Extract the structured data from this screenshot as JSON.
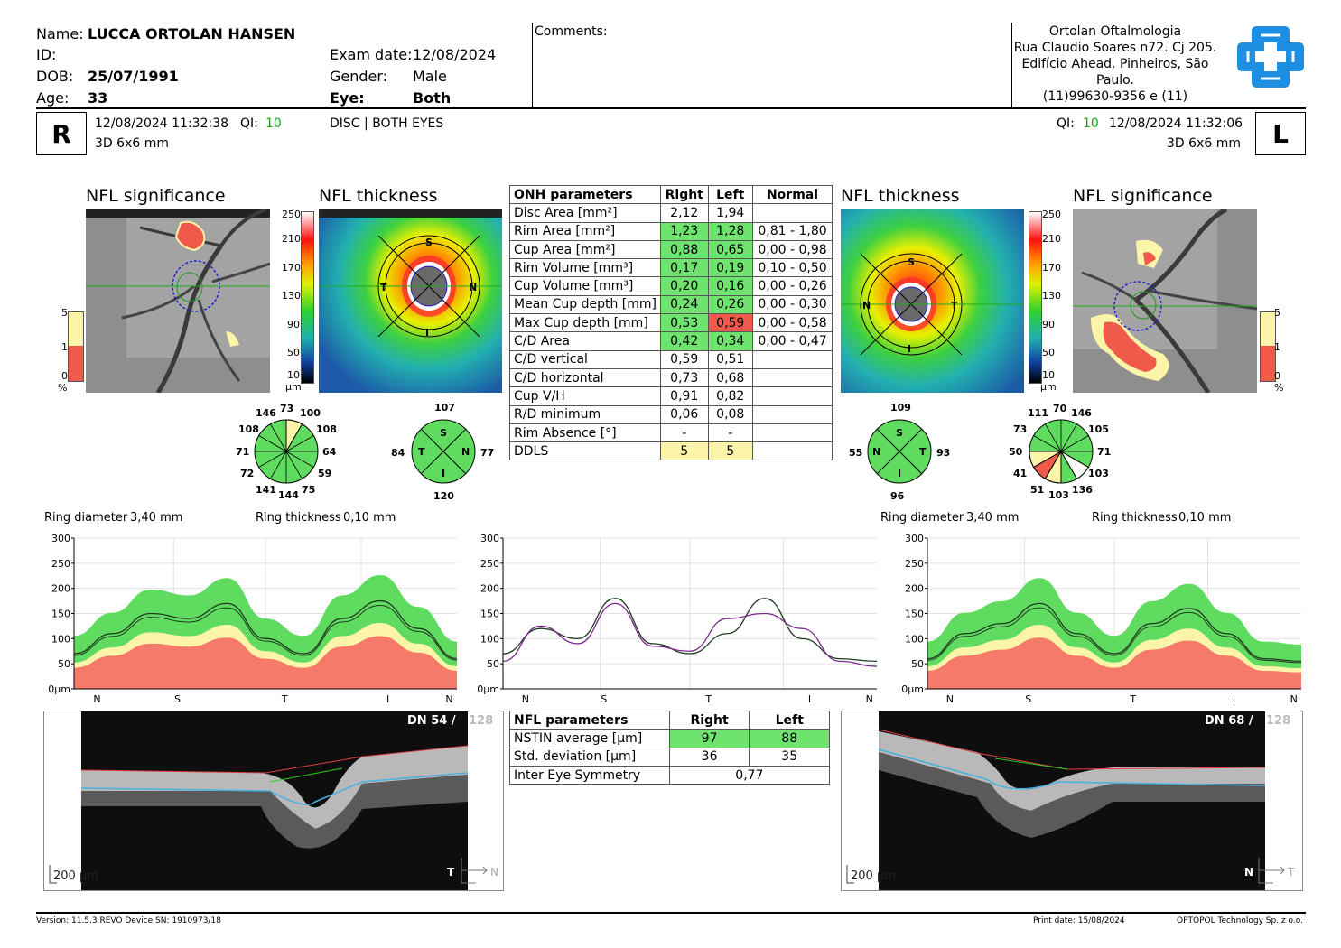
{
  "patient": {
    "name_label": "Name:",
    "name": "LUCCA ORTOLAN HANSEN",
    "id_label": "ID:",
    "dob_label": "DOB:",
    "dob": "25/07/1991",
    "age_label": "Age:",
    "age": "33",
    "exam_date_label": "Exam date:",
    "exam_date": "12/08/2024",
    "gender_label": "Gender:",
    "gender": "Male",
    "eye_label": "Eye:",
    "eye": "Both"
  },
  "comments_label": "Comments:",
  "clinic": {
    "line1": "Ortolan Oftalmologia",
    "line2": "Rua Claudio Soares n72. Cj 205.",
    "line3": "Edifício Ahead. Pinheiros, São",
    "line4": "Paulo.",
    "line5": "(11)99630-9356 e (11)"
  },
  "scan_bar": {
    "right_eye": "R",
    "left_eye": "L",
    "right_datetime": "12/08/2024 11:32:38",
    "qi_label": "QI:",
    "right_qi": "10",
    "right_mode": "3D  6x6 mm",
    "center": "DISC | BOTH EYES",
    "left_qi": "10",
    "left_datetime": "12/08/2024 11:32:06",
    "left_mode": "3D  6x6 mm"
  },
  "titles": {
    "nfl_significance": "NFL significance",
    "nfl_thickness": "NFL thickness"
  },
  "significance_scale": {
    "labels": [
      "5",
      "1",
      "0",
      "%"
    ]
  },
  "thickness_scale": {
    "labels": [
      "250",
      "210",
      "170",
      "130",
      "90",
      "50",
      "10",
      "µm"
    ]
  },
  "onh_table": {
    "headers": [
      "ONH parameters",
      "Right",
      "Left",
      "Normal"
    ],
    "rows": [
      [
        "Disc Area [mm²]",
        "2,12",
        "1,94",
        ""
      ],
      [
        "Rim Area [mm²]",
        "1,23",
        "1,28",
        "0,81 - 1,80"
      ],
      [
        "Cup Area [mm²]",
        "0,88",
        "0,65",
        "0,00 - 0,98"
      ],
      [
        "Rim Volume [mm³]",
        "0,17",
        "0,19",
        "0,10 - 0,50"
      ],
      [
        "Cup Volume [mm³]",
        "0,20",
        "0,16",
        "0,00 - 0,26"
      ],
      [
        "Mean Cup depth [mm]",
        "0,24",
        "0,26",
        "0,00 - 0,30"
      ],
      [
        "Max Cup depth [mm]",
        "0,53",
        "0,59",
        "0,00 - 0,58"
      ],
      [
        "C/D Area",
        "0,42",
        "0,34",
        "0,00 - 0,47"
      ],
      [
        "C/D vertical",
        "0,59",
        "0,51",
        ""
      ],
      [
        "C/D horizontal",
        "0,73",
        "0,68",
        ""
      ],
      [
        "Cup V/H",
        "0,91",
        "0,82",
        ""
      ],
      [
        "R/D minimum",
        "0,06",
        "0,08",
        ""
      ],
      [
        "Rim Absence [°]",
        "-",
        "-",
        ""
      ],
      [
        "DDLS",
        "5",
        "5",
        ""
      ]
    ],
    "cell_colors": {
      "green": "#6ee36e",
      "red": "#f05a4a",
      "yellow": "#fcf4a8"
    }
  },
  "sector_labels": [
    "S",
    "N",
    "T",
    "I"
  ],
  "clock_right": [
    "73",
    "100",
    "108",
    "64",
    "59",
    "75",
    "144",
    "141",
    "72",
    "71",
    "108",
    "146"
  ],
  "quad_right": {
    "top": "107",
    "left": "84",
    "right": "77",
    "bottom": "120"
  },
  "quad_left": {
    "top": "109",
    "left": "55",
    "right": "93",
    "bottom": "96"
  },
  "clock_left": [
    "70",
    "146",
    "105",
    "71",
    "103",
    "136",
    "103",
    "51",
    "41",
    "50",
    "73",
    "111"
  ],
  "ring": {
    "diameter_label": "Ring diameter",
    "diameter_value": "3,40 mm",
    "thickness_label": "Ring thickness",
    "thickness_value": "0,10 mm"
  },
  "chart_data": [
    {
      "type": "line",
      "name": "right-tsnit",
      "yticks": [
        "300",
        "250",
        "200",
        "150",
        "100",
        "50",
        "0µm"
      ],
      "xticks": [
        "N",
        "S",
        "T",
        "I",
        "N"
      ],
      "ylim": [
        0,
        300
      ],
      "x": [
        0,
        10,
        20,
        30,
        40,
        50,
        60,
        70,
        80,
        90,
        100
      ],
      "series": [
        {
          "values": [
            70,
            110,
            150,
            140,
            170,
            100,
            70,
            140,
            175,
            120,
            60
          ]
        }
      ]
    },
    {
      "type": "line",
      "name": "both-tsnit",
      "yticks": [
        "300",
        "250",
        "200",
        "150",
        "100",
        "50",
        "0µm"
      ],
      "xticks": [
        "N",
        "S",
        "T",
        "I",
        "N"
      ],
      "ylim": [
        0,
        300
      ],
      "x": [
        0,
        10,
        20,
        30,
        40,
        50,
        60,
        70,
        80,
        90,
        100
      ],
      "series": [
        {
          "values": [
            70,
            120,
            100,
            180,
            90,
            70,
            110,
            180,
            100,
            60,
            55
          ]
        },
        {
          "values": [
            55,
            125,
            90,
            170,
            85,
            75,
            140,
            150,
            120,
            55,
            45
          ]
        }
      ]
    },
    {
      "type": "line",
      "name": "left-tsnit",
      "yticks": [
        "300",
        "250",
        "200",
        "150",
        "100",
        "50",
        "0µm"
      ],
      "xticks": [
        "N",
        "S",
        "T",
        "I",
        "N"
      ],
      "ylim": [
        0,
        300
      ],
      "x": [
        0,
        10,
        20,
        30,
        40,
        50,
        60,
        70,
        80,
        90,
        100
      ],
      "series": [
        {
          "values": [
            60,
            110,
            130,
            170,
            110,
            70,
            130,
            160,
            110,
            60,
            55
          ]
        }
      ]
    }
  ],
  "nfl_table": {
    "headers": [
      "NFL parameters",
      "Right",
      "Left"
    ],
    "rows": [
      [
        "NSTIN average [µm]",
        "97",
        "88"
      ],
      [
        "Std. deviation [µm]",
        "36",
        "35"
      ],
      [
        "Inter Eye Symmetry",
        "0,77",
        ""
      ]
    ]
  },
  "bscan_right": {
    "dn": "DN  54 /",
    "dn_max": "128",
    "scale": "200 µm",
    "dir_left": "T",
    "dir_right": "N"
  },
  "bscan_left": {
    "dn": "DN  68 /",
    "dn_max": "128",
    "scale": "200 µm",
    "dir_left": "N",
    "dir_right": "T"
  },
  "footer": {
    "version": "Version: 11.5.3   REVO    Device SN: 1910973/18",
    "print_date": "Print date: 15/08/2024",
    "company": "OPTOPOL Technology Sp. z o.o."
  }
}
